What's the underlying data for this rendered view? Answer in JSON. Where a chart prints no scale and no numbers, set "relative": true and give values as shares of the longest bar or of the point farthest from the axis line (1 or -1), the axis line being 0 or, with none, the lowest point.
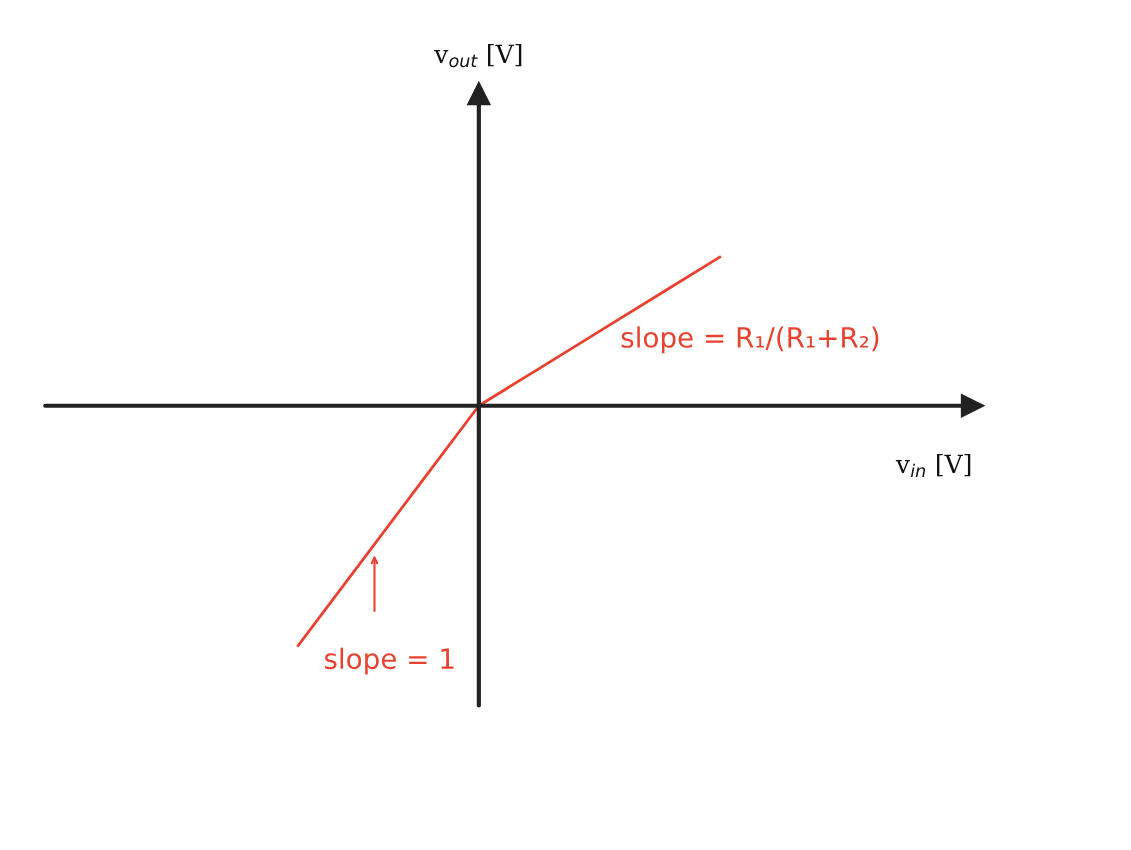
{
  "chart_data": {
    "type": "line",
    "relative": true,
    "categories": [
      null,
      null,
      null,
      null,
      null,
      null,
      null,
      null
    ],
    "series": [
      {
        "color": "#e8412f",
        "values": [
          -1,
          -0.667,
          -0.333,
          0,
          0.155,
          0.31,
          0.465,
          0.62
        ]
      }
    ],
    "annotations": [
      "slope = R₁/(R₁+R₂)",
      "slope = 1",
      "v$_{in}$ [V]",
      "v$_{out}$ [V]"
    ],
    "marker": "none",
    "line_style": "solid"
  }
}
